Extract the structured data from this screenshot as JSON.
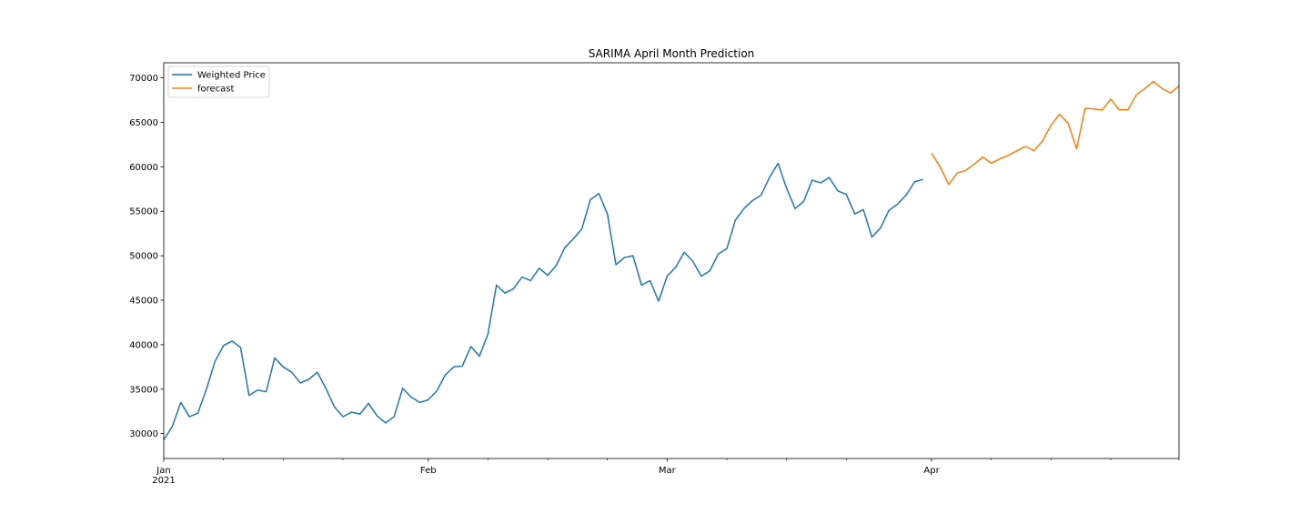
{
  "chart_data": {
    "type": "line",
    "title": "SARIMA April Month Prediction",
    "xlabel": "",
    "ylabel": "",
    "ylim": [
      27200,
      71700
    ],
    "xlim": [
      "2021-01-01",
      "2021-04-30"
    ],
    "grid": false,
    "legend_position": "top-left",
    "x_ticks_major": [
      {
        "date": "2021-01-01",
        "label": "Jan",
        "sublabel": "2021"
      },
      {
        "date": "2021-02-01",
        "label": "Feb",
        "sublabel": ""
      },
      {
        "date": "2021-03-01",
        "label": "Mar",
        "sublabel": ""
      },
      {
        "date": "2021-04-01",
        "label": "Apr",
        "sublabel": ""
      }
    ],
    "x_ticks_minor": [
      "2021-01-08",
      "2021-01-15",
      "2021-01-22",
      "2021-02-08",
      "2021-02-15",
      "2021-02-22",
      "2021-03-08",
      "2021-03-15",
      "2021-03-22",
      "2021-04-08",
      "2021-04-15",
      "2021-04-22",
      "2021-04-30"
    ],
    "y_ticks": [
      30000,
      35000,
      40000,
      45000,
      50000,
      55000,
      60000,
      65000,
      70000
    ],
    "series": [
      {
        "name": "Weighted Price",
        "color": "#1f77b4",
        "x": [
          "2021-01-01",
          "2021-01-02",
          "2021-01-03",
          "2021-01-04",
          "2021-01-05",
          "2021-01-06",
          "2021-01-07",
          "2021-01-08",
          "2021-01-09",
          "2021-01-10",
          "2021-01-11",
          "2021-01-12",
          "2021-01-13",
          "2021-01-14",
          "2021-01-15",
          "2021-01-16",
          "2021-01-17",
          "2021-01-18",
          "2021-01-19",
          "2021-01-20",
          "2021-01-21",
          "2021-01-22",
          "2021-01-23",
          "2021-01-24",
          "2021-01-25",
          "2021-01-26",
          "2021-01-27",
          "2021-01-28",
          "2021-01-29",
          "2021-01-30",
          "2021-01-31",
          "2021-02-01",
          "2021-02-02",
          "2021-02-03",
          "2021-02-04",
          "2021-02-05",
          "2021-02-06",
          "2021-02-07",
          "2021-02-08",
          "2021-02-09",
          "2021-02-10",
          "2021-02-11",
          "2021-02-12",
          "2021-02-13",
          "2021-02-14",
          "2021-02-15",
          "2021-02-16",
          "2021-02-17",
          "2021-02-18",
          "2021-02-19",
          "2021-02-20",
          "2021-02-21",
          "2021-02-22",
          "2021-02-23",
          "2021-02-24",
          "2021-02-25",
          "2021-02-26",
          "2021-02-27",
          "2021-02-28",
          "2021-03-01",
          "2021-03-02",
          "2021-03-03",
          "2021-03-04",
          "2021-03-05",
          "2021-03-06",
          "2021-03-07",
          "2021-03-08",
          "2021-03-09",
          "2021-03-10",
          "2021-03-11",
          "2021-03-12",
          "2021-03-13",
          "2021-03-14",
          "2021-03-15",
          "2021-03-16",
          "2021-03-17",
          "2021-03-18",
          "2021-03-19",
          "2021-03-20",
          "2021-03-21",
          "2021-03-22",
          "2021-03-23",
          "2021-03-24",
          "2021-03-25",
          "2021-03-26",
          "2021-03-27",
          "2021-03-28",
          "2021-03-29",
          "2021-03-30",
          "2021-03-31"
        ],
        "values": [
          29300,
          30800,
          33500,
          31900,
          32300,
          35000,
          38100,
          39900,
          40400,
          39700,
          34300,
          34900,
          34700,
          38500,
          37500,
          36900,
          35700,
          36100,
          36900,
          35100,
          33000,
          31900,
          32400,
          32200,
          33400,
          32000,
          31200,
          31900,
          35100,
          34100,
          33500,
          33800,
          34800,
          36600,
          37500,
          37600,
          39800,
          38700,
          41200,
          46700,
          45800,
          46300,
          47600,
          47200,
          48600,
          47800,
          48900,
          50900,
          51900,
          53000,
          56300,
          57000,
          54700,
          49000,
          49800,
          50000,
          46700,
          47200,
          44900,
          47700,
          48700,
          50400,
          49400,
          47700,
          48300,
          50200,
          50800,
          54000,
          55300,
          56200,
          56800,
          58800,
          60400,
          57600,
          55300,
          56100,
          58500,
          58200,
          58800,
          57300,
          56900,
          54700,
          55200,
          52100,
          53100,
          55100,
          55800,
          56800,
          58300,
          58600
        ]
      },
      {
        "name": "forecast",
        "color": "#ff7f0e",
        "x": [
          "2021-04-01",
          "2021-04-02",
          "2021-04-03",
          "2021-04-04",
          "2021-04-05",
          "2021-04-06",
          "2021-04-07",
          "2021-04-08",
          "2021-04-09",
          "2021-04-10",
          "2021-04-11",
          "2021-04-12",
          "2021-04-13",
          "2021-04-14",
          "2021-04-15",
          "2021-04-16",
          "2021-04-17",
          "2021-04-18",
          "2021-04-19",
          "2021-04-20",
          "2021-04-21",
          "2021-04-22",
          "2021-04-23",
          "2021-04-24",
          "2021-04-25",
          "2021-04-26",
          "2021-04-27",
          "2021-04-28",
          "2021-04-29",
          "2021-04-30"
        ],
        "values": [
          61500,
          60000,
          58000,
          59300,
          59600,
          60300,
          61100,
          60400,
          60900,
          61300,
          61800,
          62300,
          61800,
          62900,
          64700,
          65900,
          64900,
          62000,
          66600,
          66500,
          66400,
          67600,
          66400,
          66400,
          68100,
          68800,
          69600,
          68800,
          68300,
          69100
        ]
      }
    ]
  }
}
